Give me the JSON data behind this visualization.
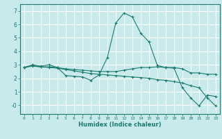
{
  "xlabel": "Humidex (Indice chaleur)",
  "background_color": "#c8eaea",
  "grid_color": "#ffffff",
  "line_color": "#1a7a6e",
  "xlim": [
    -0.5,
    23.5
  ],
  "ylim": [
    -0.65,
    7.5
  ],
  "xticks": [
    0,
    1,
    2,
    3,
    4,
    5,
    6,
    7,
    8,
    9,
    10,
    11,
    12,
    13,
    14,
    15,
    16,
    17,
    18,
    19,
    20,
    21,
    22,
    23
  ],
  "yticks": [
    0,
    1,
    2,
    3,
    4,
    5,
    6,
    7
  ],
  "ytick_labels": [
    "-0",
    "1",
    "2",
    "3",
    "4",
    "5",
    "6",
    "7"
  ],
  "line1_x": [
    0,
    1,
    2,
    3,
    4,
    5,
    6,
    7,
    8,
    9,
    10,
    11,
    12,
    13,
    14,
    15,
    16,
    17,
    18,
    19,
    20,
    21,
    22,
    23
  ],
  "line1_y": [
    2.8,
    3.0,
    2.9,
    3.0,
    2.8,
    2.2,
    2.15,
    2.1,
    1.85,
    2.25,
    3.55,
    6.1,
    6.85,
    6.55,
    5.35,
    4.7,
    2.95,
    2.8,
    2.75,
    1.3,
    0.55,
    -0.05,
    0.75,
    0.65
  ],
  "line2_x": [
    0,
    1,
    2,
    3,
    4,
    5,
    6,
    7,
    8,
    9,
    10,
    11,
    12,
    13,
    14,
    15,
    16,
    17,
    18,
    19,
    20,
    21,
    22,
    23
  ],
  "line2_y": [
    2.8,
    2.9,
    2.85,
    2.85,
    2.8,
    2.7,
    2.65,
    2.6,
    2.55,
    2.5,
    2.5,
    2.5,
    2.6,
    2.7,
    2.8,
    2.8,
    2.85,
    2.8,
    2.8,
    2.7,
    2.4,
    2.4,
    2.3,
    2.3
  ],
  "line3_x": [
    0,
    1,
    2,
    3,
    4,
    5,
    6,
    7,
    8,
    9,
    10,
    11,
    12,
    13,
    14,
    15,
    16,
    17,
    18,
    19,
    20,
    21,
    22,
    23
  ],
  "line3_y": [
    2.8,
    2.95,
    2.85,
    2.8,
    2.75,
    2.65,
    2.55,
    2.45,
    2.35,
    2.3,
    2.25,
    2.2,
    2.15,
    2.1,
    2.05,
    2.0,
    1.9,
    1.85,
    1.75,
    1.65,
    1.45,
    1.3,
    0.55,
    -0.05
  ]
}
